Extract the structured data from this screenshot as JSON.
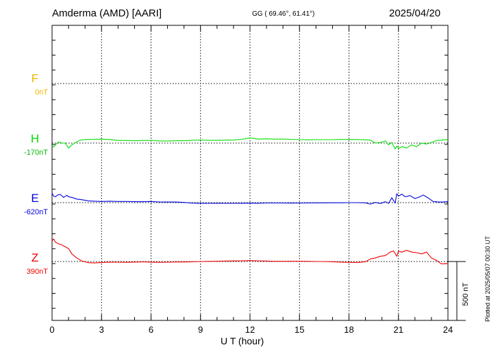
{
  "header": {
    "station": "Amderma (AMD)  [AARI]",
    "coords": "GG ( 69.46°,  61.41°)",
    "date": "2025/04/20"
  },
  "footer": {
    "plotted": "Plotted at 2025/05/07 00:30 UT"
  },
  "chart_data": {
    "type": "line",
    "xlabel": "U T (hour)",
    "xlim": [
      0,
      24
    ],
    "xticks": [
      0,
      3,
      6,
      9,
      12,
      15,
      18,
      21,
      24
    ],
    "grid": true,
    "scale_bar": "500 nT",
    "channels": [
      {
        "name": "F",
        "baseline_label": "0nT",
        "color": "#f0b400"
      },
      {
        "name": "H",
        "baseline_label": "-170nT",
        "color": "#00dd00"
      },
      {
        "name": "E",
        "baseline_label": "-620nT",
        "color": "#0000dd"
      },
      {
        "name": "Z",
        "baseline_label": "390nT",
        "color": "#ee0000"
      }
    ],
    "series": [
      {
        "name": "H",
        "x": [
          0,
          0.1,
          0.25,
          0.4,
          0.6,
          0.8,
          1.0,
          1.2,
          1.4,
          1.7,
          2.0,
          2.5,
          3.0,
          3.5,
          4.0,
          4.5,
          5.0,
          5.5,
          6.0,
          6.5,
          7.0,
          7.5,
          8.0,
          8.5,
          9.0,
          9.5,
          10.0,
          10.5,
          11.0,
          11.5,
          12.0,
          12.5,
          13.0,
          13.5,
          14.0,
          14.5,
          15.0,
          15.5,
          16.0,
          16.5,
          17.0,
          17.5,
          18.0,
          18.5,
          19.0,
          19.3,
          19.6,
          19.9,
          20.2,
          20.4,
          20.6,
          20.8,
          20.9,
          21.0,
          21.2,
          21.5,
          21.8,
          22.1,
          22.4,
          22.7,
          23.0,
          23.3,
          23.6,
          23.9,
          24.0
        ],
        "values": [
          -195,
          -202,
          -178,
          -160,
          -170,
          -170,
          -212,
          -185,
          -168,
          -145,
          -140,
          -138,
          -136,
          -140,
          -148,
          -148,
          -150,
          -148,
          -147,
          -152,
          -152,
          -150,
          -150,
          -146,
          -144,
          -146,
          -146,
          -145,
          -143,
          -138,
          -126,
          -136,
          -134,
          -136,
          -136,
          -138,
          -141,
          -142,
          -141,
          -141,
          -141,
          -139,
          -139,
          -140,
          -142,
          -145,
          -170,
          -165,
          -152,
          -185,
          -165,
          -220,
          -195,
          -215,
          -200,
          -212,
          -185,
          -200,
          -170,
          -178,
          -165,
          -148,
          -145,
          -140,
          -145
        ]
      },
      {
        "name": "E",
        "x": [
          0,
          0.1,
          0.2,
          0.35,
          0.5,
          0.7,
          0.9,
          1.0,
          1.2,
          1.5,
          1.8,
          2.2,
          2.6,
          3.0,
          3.5,
          4.0,
          4.5,
          5.0,
          5.5,
          6.0,
          6.5,
          7.0,
          7.5,
          8.0,
          8.5,
          9.0,
          9.5,
          10.0,
          10.5,
          11.0,
          11.5,
          12.0,
          12.5,
          13.0,
          13.5,
          14.0,
          14.5,
          15.0,
          15.5,
          16.0,
          16.5,
          17.0,
          17.5,
          18.0,
          18.5,
          19.0,
          19.3,
          19.6,
          19.9,
          20.2,
          20.4,
          20.6,
          20.8,
          20.9,
          21.0,
          21.2,
          21.4,
          21.7,
          22.0,
          22.3,
          22.5,
          22.8,
          23.1,
          23.4,
          23.7,
          24.0
        ],
        "values": [
          -540,
          -565,
          -570,
          -555,
          -550,
          -575,
          -558,
          -570,
          -575,
          -590,
          -595,
          -605,
          -608,
          -610,
          -608,
          -610,
          -610,
          -612,
          -612,
          -610,
          -614,
          -615,
          -615,
          -618,
          -624,
          -625,
          -626,
          -625,
          -626,
          -626,
          -625,
          -624,
          -625,
          -623,
          -623,
          -623,
          -624,
          -623,
          -623,
          -622,
          -622,
          -621,
          -621,
          -620,
          -620,
          -622,
          -632,
          -618,
          -628,
          -612,
          -626,
          -578,
          -625,
          -545,
          -565,
          -548,
          -570,
          -560,
          -585,
          -570,
          -555,
          -580,
          -610,
          -615,
          -615,
          -612
        ]
      },
      {
        "name": "Z",
        "x": [
          0,
          0.1,
          0.2,
          0.4,
          0.6,
          0.8,
          1.0,
          1.2,
          1.5,
          1.8,
          2.2,
          2.6,
          3.0,
          3.5,
          4.0,
          4.5,
          5.0,
          5.5,
          6.0,
          6.5,
          7.0,
          7.5,
          8.0,
          8.5,
          9.0,
          9.5,
          10.0,
          10.5,
          11.0,
          11.5,
          12.0,
          12.5,
          13.0,
          13.5,
          14.0,
          14.5,
          15.0,
          15.5,
          16.0,
          16.5,
          17.0,
          17.5,
          18.0,
          18.5,
          19.0,
          19.3,
          19.6,
          19.9,
          20.2,
          20.5,
          20.7,
          20.9,
          21.0,
          21.2,
          21.5,
          21.8,
          22.1,
          22.4,
          22.7,
          23.0,
          23.3,
          23.6,
          24.0
        ],
        "values": [
          565,
          582,
          555,
          540,
          530,
          515,
          500,
          455,
          420,
          395,
          380,
          378,
          382,
          385,
          384,
          383,
          385,
          387,
          385,
          383,
          384,
          386,
          386,
          388,
          390,
          391,
          393,
          394,
          395,
          396,
          398,
          396,
          394,
          392,
          392,
          393,
          393,
          392,
          390,
          390,
          388,
          385,
          383,
          382,
          388,
          412,
          420,
          435,
          440,
          470,
          480,
          435,
          478,
          470,
          485,
          470,
          465,
          455,
          470,
          420,
          400,
          370,
          372
        ]
      }
    ]
  }
}
